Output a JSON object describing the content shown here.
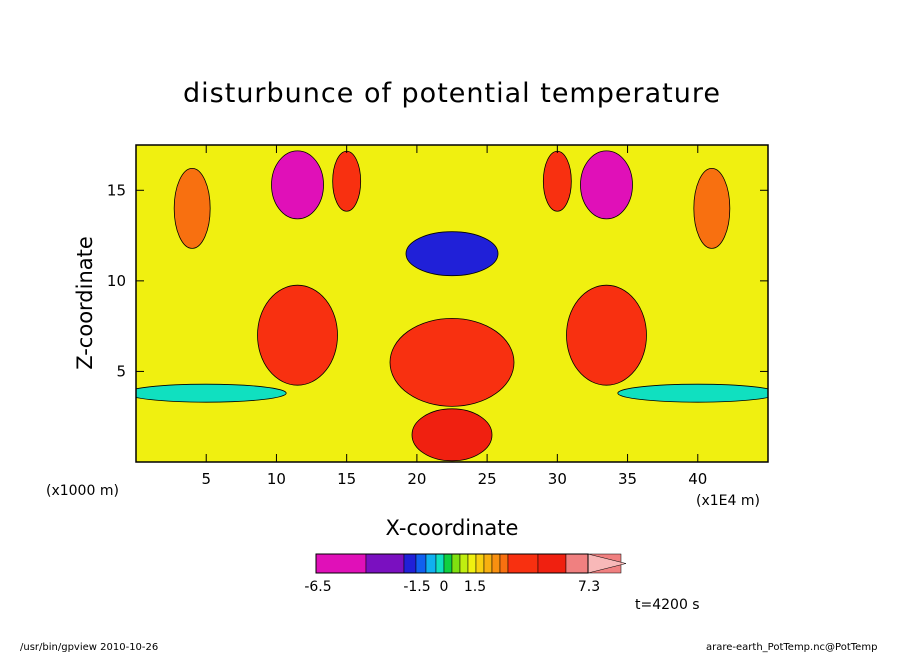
{
  "chart_data": {
    "type": "heatmap",
    "title": "disturbunce of potential temperature",
    "xlabel": "X-coordinate",
    "ylabel": "Z-coordinate",
    "x_unit": "(x1E4 m)",
    "y_unit": "(x1000 m)",
    "xlim": [
      0,
      45
    ],
    "ylim": [
      0,
      17.5
    ],
    "x_ticks": [
      5,
      10,
      15,
      20,
      25,
      30,
      35,
      40
    ],
    "y_ticks": [
      5,
      10,
      15
    ],
    "x_tick_labels": [
      "5",
      "10",
      "15",
      "20",
      "25",
      "30",
      "35",
      "40"
    ],
    "y_tick_labels": [
      "5",
      "10",
      "15"
    ],
    "colorbar": {
      "levels": [
        -6.5,
        -5.0,
        -3.5,
        -2.5,
        -1.5,
        -1.2,
        -0.9,
        -0.6,
        -0.3,
        0,
        0.3,
        0.6,
        0.9,
        1.2,
        1.5,
        2.5,
        3.5,
        5.0,
        7.3
      ],
      "colors": [
        "#e010b8",
        "#7a10c0",
        "#2020d8",
        "#1060f0",
        "#10b0f0",
        "#10e0c0",
        "#10d040",
        "#80e010",
        "#c0ee10",
        "#f0f010",
        "#f8d010",
        "#f8b010",
        "#f89010",
        "#f87010",
        "#f83010",
        "#f02010",
        "#f08080",
        "#f8b8b8"
      ],
      "tick_labels": [
        "-6.5",
        "-1.5",
        "0",
        "1.5",
        "7.3"
      ]
    },
    "background_value": 0.15,
    "features": [
      {
        "x": 4,
        "z": 14.0,
        "value": 1.3
      },
      {
        "x": 41,
        "z": 14.0,
        "value": 1.3
      },
      {
        "x": 11.5,
        "z": 15.3,
        "value": -5.5
      },
      {
        "x": 33.5,
        "z": 15.3,
        "value": -5.5
      },
      {
        "x": 22.5,
        "z": 11.5,
        "value": -2.8
      },
      {
        "x": 15,
        "z": 15.5,
        "value": 2.0
      },
      {
        "x": 30,
        "z": 15.5,
        "value": 2.0
      },
      {
        "x": 11.5,
        "z": 7.0,
        "value": 1.5
      },
      {
        "x": 33.5,
        "z": 7.0,
        "value": 1.5
      },
      {
        "x": 22.5,
        "z": 5.5,
        "value": 2.4
      },
      {
        "x": 5,
        "z": 3.8,
        "value": -1.2
      },
      {
        "x": 40,
        "z": 3.8,
        "value": -1.2
      },
      {
        "x": 22.5,
        "z": 1.5,
        "value": 3.0
      }
    ],
    "grid": false,
    "legend": "bottom-center"
  },
  "annotations": {
    "time": "t=4200 s",
    "footer_left": "/usr/bin/gpview  2010-10-26",
    "footer_right": "arare-earth_PotTemp.nc@PotTemp"
  }
}
